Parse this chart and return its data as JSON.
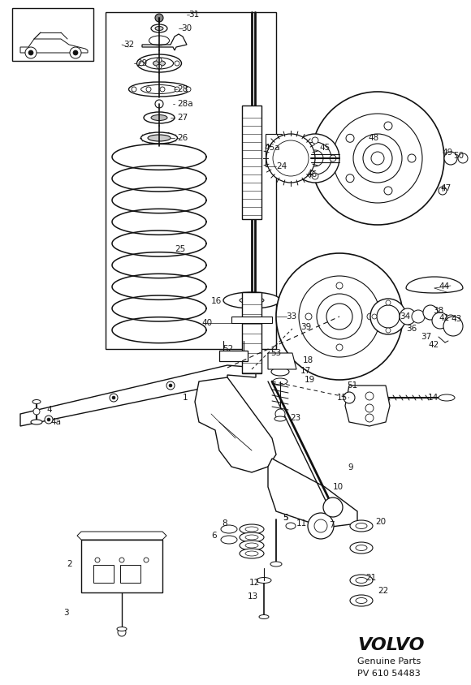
{
  "bg": "white",
  "lc": "#111111",
  "lw_main": 0.9,
  "fig_w": 5.8,
  "fig_h": 8.44,
  "dpi": 100,
  "volvo_text": "VOLVO",
  "genuine_parts": "Genuine Parts",
  "part_number": "PV 610 54483"
}
